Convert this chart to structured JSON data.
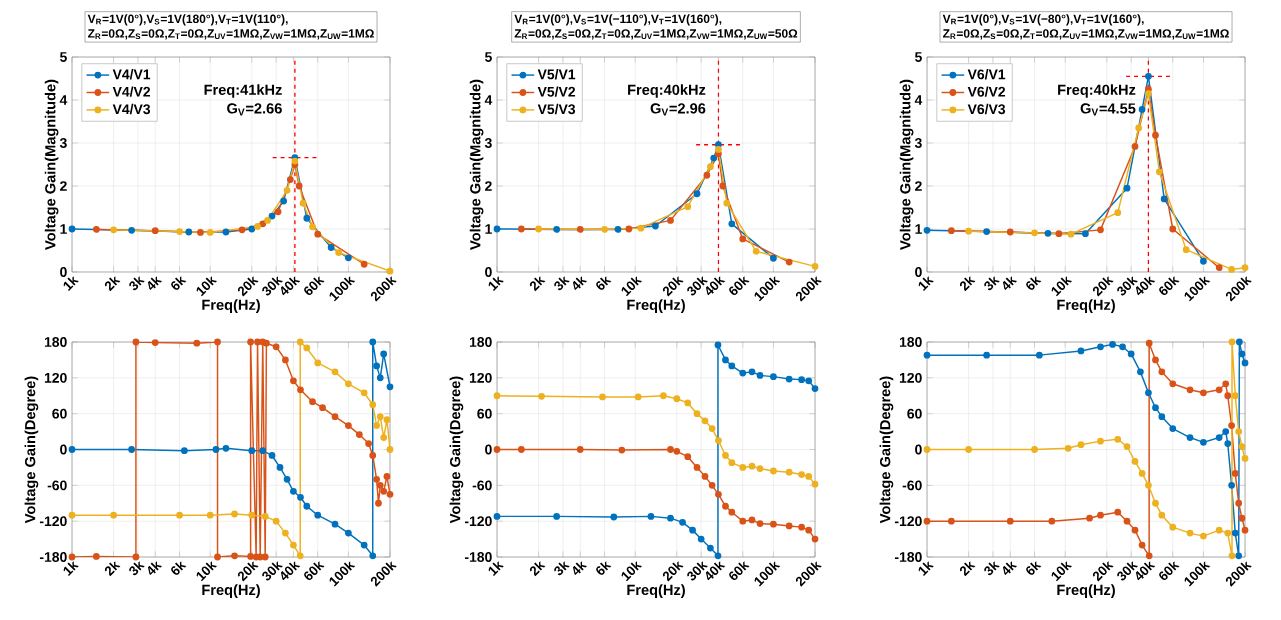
{
  "chart_data": [
    {
      "type": "line",
      "title": "V$_{R}$=1V(0°),V$_{S}$=1V(180°),V$_{T}$=1V(110°),",
      "subtitle": "Z$_{R}$=0Ω,Z$_{S}$=0Ω,Z$_{T}$=0Ω,Z$_{UV}$=1MΩ,Z$_{VW}$=1MΩ,Z$_{UW}$=1MΩ",
      "xlabel": "Freq(Hz)",
      "ylabel": "Voltage Gain(Magnitude)",
      "log": "x",
      "grid": true,
      "legend": "top left",
      "marker": "circle",
      "xlim": [
        1000,
        200000
      ],
      "ylim": [
        0,
        5
      ],
      "yticks": [
        0,
        1,
        2,
        3,
        4,
        5
      ],
      "xticks": [
        {
          "value": 1000,
          "label": "1k"
        },
        {
          "value": 2000,
          "label": "2k"
        },
        {
          "value": 3000,
          "label": "3k"
        },
        {
          "value": 4000,
          "label": "4k"
        },
        {
          "value": 6000,
          "label": "6k"
        },
        {
          "value": 10000,
          "label": "10k"
        },
        {
          "value": 20000,
          "label": "20k"
        },
        {
          "value": 30000,
          "label": "30k"
        },
        {
          "value": 40000,
          "label": "40k"
        },
        {
          "value": 60000,
          "label": "60k"
        },
        {
          "value": 100000,
          "label": "100k"
        },
        {
          "value": 200000,
          "label": "200k"
        }
      ],
      "series": [
        {
          "name": "V4/V1",
          "color": "#0072bd",
          "x": [
            1000,
            2700,
            7000,
            13000,
            20000,
            28000,
            34000,
            41000,
            50000,
            75000,
            100000
          ],
          "values": [
            1.0,
            0.97,
            0.93,
            0.93,
            1.0,
            1.3,
            1.65,
            2.66,
            1.25,
            0.57,
            0.33
          ]
        },
        {
          "name": "V4/V2",
          "color": "#d95319",
          "x": [
            1500,
            4000,
            8500,
            17000,
            24000,
            31000,
            38000,
            41000,
            44000,
            60000,
            130000
          ],
          "values": [
            0.99,
            0.96,
            0.92,
            0.98,
            1.12,
            1.4,
            2.15,
            2.5,
            2.0,
            0.88,
            0.18
          ]
        },
        {
          "name": "V4/V3",
          "color": "#edb120",
          "x": [
            2000,
            6000,
            10000,
            22000,
            26000,
            36000,
            41000,
            47000,
            55000,
            85000,
            200000
          ],
          "values": [
            0.98,
            0.94,
            0.92,
            1.06,
            1.2,
            1.9,
            2.58,
            1.6,
            1.05,
            0.45,
            0.02
          ]
        }
      ],
      "ref_lines": [
        {
          "axis": "x",
          "value": 41000,
          "color": "#ff0000",
          "line_style": "dashed"
        },
        {
          "axis": "y",
          "value": 2.66,
          "color": "#ff0000",
          "line_style": "dashed"
        }
      ],
      "annotations": [
        "Freq:41kHz",
        "G$_{V}$=2.66"
      ]
    },
    {
      "type": "line",
      "title": "V$_{R}$=1V(0°),V$_{S}$=1V(−110°),V$_{T}$=1V(160°),",
      "subtitle": "Z$_{R}$=0Ω,Z$_{S}$=0Ω,Z$_{T}$=0Ω,Z$_{UV}$=1MΩ,Z$_{VW}$=1MΩ,Z$_{UW}$=50Ω",
      "xlabel": "Freq(Hz)",
      "ylabel": "Voltage Gain(Magnitude)",
      "log": "x",
      "grid": true,
      "legend": "top left",
      "marker": "circle",
      "xlim": [
        1000,
        200000
      ],
      "ylim": [
        0,
        5
      ],
      "yticks": [
        0,
        1,
        2,
        3,
        4,
        5
      ],
      "xticks": [
        {
          "value": 1000,
          "label": "1k"
        },
        {
          "value": 2000,
          "label": "2k"
        },
        {
          "value": 3000,
          "label": "3k"
        },
        {
          "value": 4000,
          "label": "4k"
        },
        {
          "value": 6000,
          "label": "6k"
        },
        {
          "value": 10000,
          "label": "10k"
        },
        {
          "value": 20000,
          "label": "20k"
        },
        {
          "value": 30000,
          "label": "30k"
        },
        {
          "value": 40000,
          "label": "40k"
        },
        {
          "value": 60000,
          "label": "60k"
        },
        {
          "value": 100000,
          "label": "100k"
        },
        {
          "value": 200000,
          "label": "200k"
        }
      ],
      "series": [
        {
          "name": "V5/V1",
          "color": "#0072bd",
          "x": [
            1000,
            2700,
            7500,
            14000,
            28000,
            37000,
            40000,
            50000,
            100000
          ],
          "values": [
            1.0,
            0.99,
            0.99,
            1.07,
            1.82,
            2.65,
            2.96,
            1.12,
            0.32
          ]
        },
        {
          "name": "V5/V2",
          "color": "#d95319",
          "x": [
            1500,
            4000,
            9000,
            18000,
            33000,
            40000,
            43000,
            60000,
            130000
          ],
          "values": [
            1.0,
            0.99,
            1.0,
            1.2,
            2.25,
            2.75,
            2.0,
            0.77,
            0.23
          ]
        },
        {
          "name": "V5/V3",
          "color": "#edb120",
          "x": [
            2000,
            6000,
            11000,
            24000,
            35000,
            40000,
            46000,
            75000,
            200000
          ],
          "values": [
            1.0,
            0.99,
            1.02,
            1.52,
            2.45,
            2.85,
            1.6,
            0.48,
            0.13
          ]
        }
      ],
      "ref_lines": [
        {
          "axis": "x",
          "value": 40000,
          "color": "#ff0000",
          "line_style": "dashed"
        },
        {
          "axis": "y",
          "value": 2.96,
          "color": "#ff0000",
          "line_style": "dashed"
        }
      ],
      "annotations": [
        "Freq:40kHz",
        "G$_{V}$=2.96"
      ]
    },
    {
      "type": "line",
      "title": "V$_{R}$=1V(0°),V$_{S}$=1V(−80°),V$_{T}$=1V(160°),",
      "subtitle": "Z$_{R}$=0Ω,Z$_{S}$=0Ω,Z$_{T}$=0Ω,Z$_{UV}$=1MΩ,Z$_{VW}$=1MΩ,Z$_{UW}$=1MΩ",
      "xlabel": "Freq(Hz)",
      "ylabel": "Voltage Gain(Magnitude)",
      "log": "x",
      "grid": true,
      "legend": "top left",
      "marker": "circle",
      "xlim": [
        1000,
        200000
      ],
      "ylim": [
        0,
        5
      ],
      "yticks": [
        0,
        1,
        2,
        3,
        4,
        5
      ],
      "xticks": [
        {
          "value": 1000,
          "label": "1k"
        },
        {
          "value": 2000,
          "label": "2k"
        },
        {
          "value": 3000,
          "label": "3k"
        },
        {
          "value": 4000,
          "label": "4k"
        },
        {
          "value": 6000,
          "label": "6k"
        },
        {
          "value": 10000,
          "label": "10k"
        },
        {
          "value": 20000,
          "label": "20k"
        },
        {
          "value": 30000,
          "label": "30k"
        },
        {
          "value": 40000,
          "label": "40k"
        },
        {
          "value": 60000,
          "label": "60k"
        },
        {
          "value": 100000,
          "label": "100k"
        },
        {
          "value": 200000,
          "label": "200k"
        }
      ],
      "series": [
        {
          "name": "V6/V1",
          "color": "#0072bd",
          "x": [
            1000,
            2700,
            7500,
            14000,
            28000,
            36000,
            40000,
            52000,
            100000
          ],
          "values": [
            0.97,
            0.94,
            0.9,
            0.89,
            1.95,
            3.78,
            4.55,
            1.7,
            0.25
          ]
        },
        {
          "name": "V6/V2",
          "color": "#d95319",
          "x": [
            1500,
            4000,
            9000,
            18000,
            32000,
            40000,
            45000,
            60000,
            130000
          ],
          "values": [
            0.96,
            0.93,
            0.89,
            0.98,
            2.92,
            4.25,
            3.18,
            1.0,
            0.1
          ]
        },
        {
          "name": "V6/V3",
          "color": "#edb120",
          "x": [
            2000,
            6000,
            11000,
            24000,
            34000,
            40000,
            48000,
            75000,
            160000,
            200000
          ],
          "values": [
            0.95,
            0.91,
            0.88,
            1.38,
            3.35,
            4.15,
            2.33,
            0.52,
            0.06,
            0.1
          ]
        }
      ],
      "ref_lines": [
        {
          "axis": "x",
          "value": 40000,
          "color": "#ff0000",
          "line_style": "dashed"
        },
        {
          "axis": "y",
          "value": 4.55,
          "color": "#ff0000",
          "line_style": "dashed"
        }
      ],
      "annotations": [
        "Freq:40kHz",
        "G$_{V}$=4.55"
      ]
    },
    {
      "type": "line",
      "xlabel": "Freq(Hz)",
      "ylabel": "Voltage Gain(Degree)",
      "log": "x",
      "grid": true,
      "marker": "circle",
      "xlim": [
        1000,
        200000
      ],
      "ylim": [
        -180,
        180
      ],
      "yticks": [
        -180,
        -120,
        -60,
        0,
        60,
        120,
        180
      ],
      "xticks": [
        {
          "value": 1000,
          "label": "1k"
        },
        {
          "value": 2000,
          "label": "2k"
        },
        {
          "value": 3000,
          "label": "3k"
        },
        {
          "value": 4000,
          "label": "4k"
        },
        {
          "value": 6000,
          "label": "6k"
        },
        {
          "value": 10000,
          "label": "10k"
        },
        {
          "value": 20000,
          "label": "20k"
        },
        {
          "value": 30000,
          "label": "30k"
        },
        {
          "value": 40000,
          "label": "40k"
        },
        {
          "value": 60000,
          "label": "60k"
        },
        {
          "value": 100000,
          "label": "100k"
        },
        {
          "value": 200000,
          "label": "200k"
        }
      ],
      "series": [
        {
          "color": "#0072bd",
          "x": [
            1000,
            2700,
            6500,
            11000,
            13000,
            20000,
            24000,
            28000,
            32000,
            36000,
            40000,
            45000,
            50000,
            60000,
            80000,
            100000,
            130000,
            150000,
            150000,
            160000,
            170000,
            180000,
            200000
          ],
          "values": [
            0,
            0,
            -2,
            0,
            2,
            -2,
            -2,
            -10,
            -30,
            -50,
            -70,
            -80,
            -95,
            -110,
            -125,
            -140,
            -160,
            -178,
            180,
            140,
            120,
            160,
            105
          ]
        },
        {
          "color": "#d95319",
          "x": [
            1000,
            1500,
            2900,
            2900,
            4000,
            8000,
            11300,
            11300,
            15000,
            19600,
            19600,
            21500,
            22000,
            23000,
            24000,
            25000,
            25500,
            30000,
            35000,
            40000,
            45000,
            55000,
            65000,
            80000,
            100000,
            120000,
            140000,
            150000,
            160000,
            165000,
            170000,
            180000,
            190000,
            200000
          ],
          "values": [
            -180,
            -179,
            -180,
            180,
            179,
            178,
            180,
            -180,
            -178,
            -179,
            180,
            -180,
            180,
            -180,
            180,
            -180,
            178,
            172,
            150,
            115,
            100,
            80,
            70,
            55,
            40,
            25,
            10,
            -10,
            -50,
            -90,
            -60,
            -70,
            -45,
            -75
          ]
        },
        {
          "color": "#edb120",
          "x": [
            1000,
            2000,
            6000,
            10000,
            15000,
            20000,
            25000,
            30000,
            35000,
            40000,
            44800,
            44800,
            50000,
            60000,
            80000,
            100000,
            130000,
            150000,
            160000,
            170000,
            180000,
            190000,
            200000
          ],
          "values": [
            -110,
            -110,
            -110,
            -110,
            -108,
            -110,
            -112,
            -120,
            -140,
            -160,
            -178,
            180,
            170,
            145,
            130,
            110,
            95,
            75,
            40,
            55,
            20,
            50,
            0
          ]
        }
      ]
    },
    {
      "type": "line",
      "xlabel": "Freq(Hz)",
      "ylabel": "Voltage Gain(Degree)",
      "log": "x",
      "grid": true,
      "marker": "circle",
      "xlim": [
        1000,
        200000
      ],
      "ylim": [
        -180,
        180
      ],
      "yticks": [
        -180,
        -120,
        -60,
        0,
        60,
        120,
        180
      ],
      "xticks": [
        {
          "value": 1000,
          "label": "1k"
        },
        {
          "value": 2000,
          "label": "2k"
        },
        {
          "value": 3000,
          "label": "3k"
        },
        {
          "value": 4000,
          "label": "4k"
        },
        {
          "value": 6000,
          "label": "6k"
        },
        {
          "value": 10000,
          "label": "10k"
        },
        {
          "value": 20000,
          "label": "20k"
        },
        {
          "value": 30000,
          "label": "30k"
        },
        {
          "value": 40000,
          "label": "40k"
        },
        {
          "value": 60000,
          "label": "60k"
        },
        {
          "value": 100000,
          "label": "100k"
        },
        {
          "value": 200000,
          "label": "200k"
        }
      ],
      "series": [
        {
          "color": "#0072bd",
          "x": [
            1000,
            2700,
            7000,
            13000,
            18000,
            22000,
            26000,
            30000,
            35000,
            39700,
            39700,
            45000,
            50000,
            60000,
            70000,
            80000,
            100000,
            130000,
            160000,
            180000,
            200000
          ],
          "values": [
            -112,
            -112,
            -113,
            -112,
            -115,
            -122,
            -135,
            -150,
            -165,
            -178,
            175,
            150,
            140,
            128,
            130,
            124,
            122,
            118,
            117,
            115,
            102
          ]
        },
        {
          "color": "#d95319",
          "x": [
            1000,
            1500,
            4000,
            8000,
            18000,
            20000,
            24000,
            28000,
            32000,
            36000,
            40000,
            45000,
            50000,
            60000,
            70000,
            80000,
            100000,
            130000,
            160000,
            180000,
            200000
          ],
          "values": [
            0,
            0,
            0,
            -1,
            0,
            -3,
            -12,
            -30,
            -45,
            -60,
            -75,
            -95,
            -105,
            -120,
            -118,
            -124,
            -125,
            -128,
            -130,
            -135,
            -150
          ]
        },
        {
          "color": "#edb120",
          "x": [
            1000,
            2100,
            5800,
            10500,
            16000,
            20000,
            24000,
            28000,
            32000,
            36000,
            40000,
            45000,
            50000,
            60000,
            70000,
            80000,
            100000,
            130000,
            160000,
            180000,
            200000
          ],
          "values": [
            90,
            89,
            88,
            88,
            90,
            85,
            78,
            60,
            48,
            35,
            15,
            -10,
            -22,
            -30,
            -28,
            -32,
            -36,
            -38,
            -42,
            -45,
            -58
          ]
        }
      ]
    },
    {
      "type": "line",
      "xlabel": "Freq(Hz)",
      "ylabel": "Voltage Gain(Degree)",
      "log": "x",
      "grid": true,
      "marker": "circle",
      "xlim": [
        1000,
        200000
      ],
      "ylim": [
        -180,
        180
      ],
      "yticks": [
        -180,
        -120,
        -60,
        0,
        60,
        120,
        180
      ],
      "xticks": [
        {
          "value": 1000,
          "label": "1k"
        },
        {
          "value": 2000,
          "label": "2k"
        },
        {
          "value": 3000,
          "label": "3k"
        },
        {
          "value": 4000,
          "label": "4k"
        },
        {
          "value": 6000,
          "label": "6k"
        },
        {
          "value": 10000,
          "label": "10k"
        },
        {
          "value": 20000,
          "label": "20k"
        },
        {
          "value": 30000,
          "label": "30k"
        },
        {
          "value": 40000,
          "label": "40k"
        },
        {
          "value": 60000,
          "label": "60k"
        },
        {
          "value": 100000,
          "label": "100k"
        },
        {
          "value": 200000,
          "label": "200k"
        }
      ],
      "series": [
        {
          "color": "#0072bd",
          "x": [
            1000,
            2700,
            6500,
            13000,
            18000,
            22000,
            26000,
            30000,
            35000,
            40000,
            45000,
            50000,
            60000,
            80000,
            100000,
            130000,
            145000,
            150000,
            160000,
            170000,
            180000,
            182000,
            190000,
            200000
          ],
          "values": [
            158,
            158,
            158,
            165,
            172,
            176,
            172,
            160,
            130,
            95,
            70,
            55,
            35,
            20,
            12,
            20,
            30,
            10,
            -60,
            -140,
            -178,
            180,
            160,
            145
          ]
        },
        {
          "color": "#d95319",
          "x": [
            1000,
            1500,
            4000,
            8000,
            15000,
            18000,
            24000,
            28000,
            32000,
            36000,
            40500,
            40500,
            45000,
            50000,
            60000,
            80000,
            100000,
            130000,
            145000,
            150000,
            160000,
            170000,
            180000,
            190000,
            200000
          ],
          "values": [
            -120,
            -120,
            -120,
            -120,
            -115,
            -110,
            -105,
            -120,
            -135,
            -160,
            -178,
            178,
            150,
            130,
            110,
            100,
            95,
            100,
            110,
            90,
            40,
            -40,
            -90,
            -115,
            -135
          ]
        },
        {
          "color": "#edb120",
          "x": [
            1000,
            2000,
            6000,
            10500,
            13000,
            18000,
            24000,
            28000,
            32000,
            36000,
            40000,
            45000,
            50000,
            60000,
            80000,
            100000,
            130000,
            150000,
            161000,
            161000,
            170000,
            180000,
            190000,
            200000
          ],
          "values": [
            0,
            0,
            0,
            2,
            8,
            14,
            17,
            5,
            -20,
            -40,
            -60,
            -90,
            -110,
            -130,
            -140,
            -145,
            -135,
            -140,
            -178,
            180,
            90,
            30,
            5,
            -15
          ]
        }
      ]
    }
  ]
}
